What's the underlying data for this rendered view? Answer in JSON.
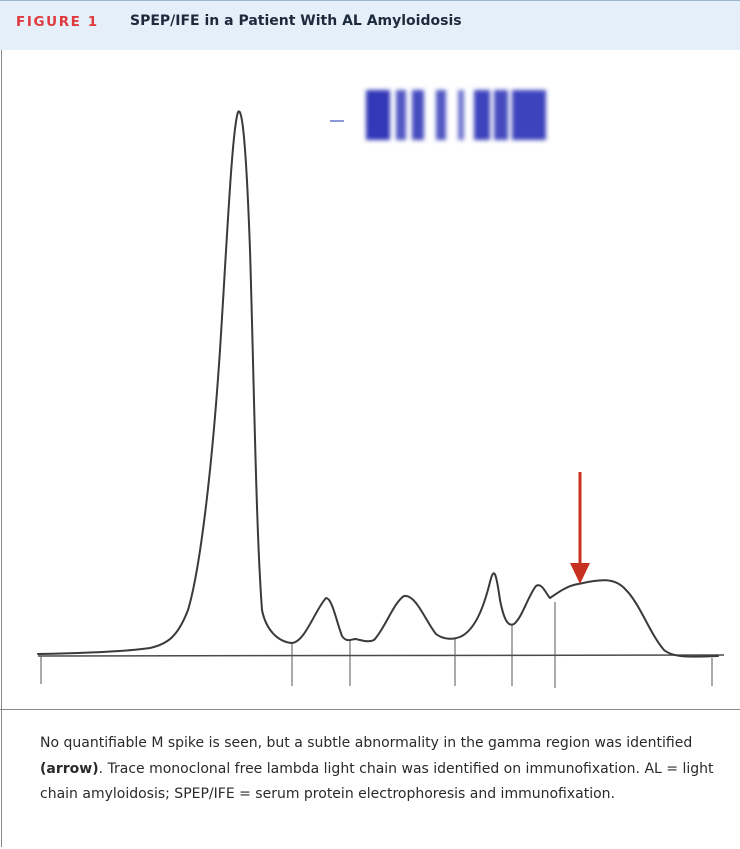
{
  "figure": {
    "label": "FIGURE 1",
    "title": "SPEP/IFE in a Patient With AL Amyloidosis"
  },
  "diagram": {
    "trace_color": "#3a3a3a",
    "arrow_color": "#c8311f",
    "gel_band_color": "#3138b8",
    "arrow_annotation": "subtle abnormality in the gamma region"
  },
  "caption": {
    "part1": "No quantifiable M spike is seen, but a subtle abnormality in the gamma region was identified ",
    "arrow_ref": "(arrow)",
    "part2": ". Trace monoclonal free lambda light chain was identified on immunofixation. AL = light chain amyloidosis; SPEP/IFE = serum protein electrophoresis and immunofixation."
  }
}
